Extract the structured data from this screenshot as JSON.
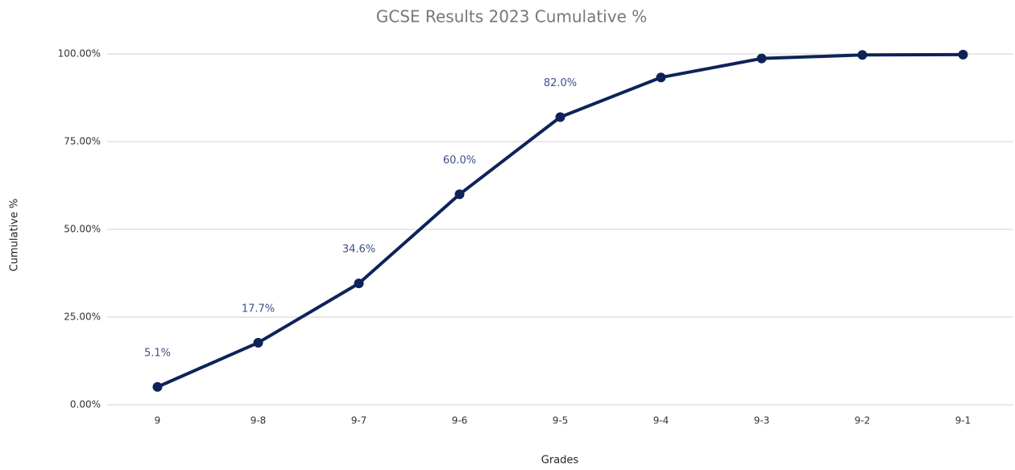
{
  "chart_data": {
    "type": "line",
    "title": "GCSE Results 2023 Cumulative %",
    "x_label": "Grades",
    "y_label": "Cumulative %",
    "categories": [
      "9",
      "9-8",
      "9-7",
      "9-6",
      "9-5",
      "9-4",
      "9-3",
      "9-2",
      "9-1"
    ],
    "series": [
      {
        "name": "Cumulative %",
        "color": "#0d2359",
        "values": [
          5.1,
          17.7,
          34.6,
          60.0,
          82.0,
          93.3,
          98.7,
          99.7,
          99.8
        ],
        "value_labels": [
          "5.1%",
          "17.7%",
          "34.6%",
          "60.0%",
          "82.0%",
          null,
          null,
          null,
          null
        ]
      }
    ],
    "ylim": [
      0,
      100
    ],
    "yticks": [
      {
        "value": 0,
        "label": "0.00%"
      },
      {
        "value": 25,
        "label": "25.00%"
      },
      {
        "value": 50,
        "label": "50.00%"
      },
      {
        "value": 75,
        "label": "75.00%"
      },
      {
        "value": 100,
        "label": "100.00%"
      }
    ],
    "grid": true
  }
}
